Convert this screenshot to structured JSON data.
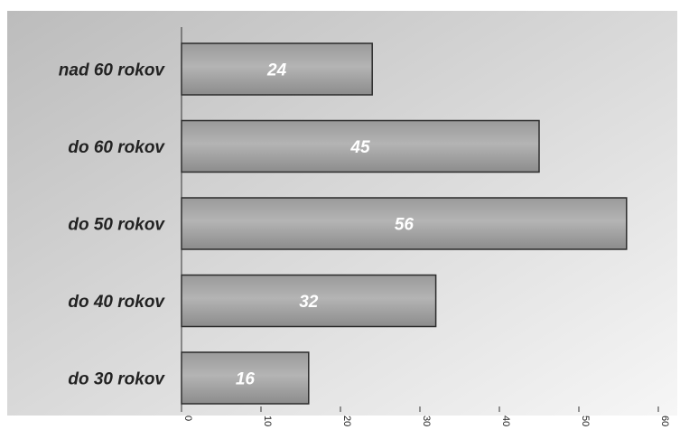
{
  "chart_data": {
    "type": "bar",
    "orientation": "horizontal",
    "categories": [
      "nad 60 rokov",
      "do 60 rokov",
      "do 50 rokov",
      "do 40 rokov",
      "do 30 rokov"
    ],
    "values": [
      24,
      45,
      56,
      32,
      16
    ],
    "data_labels": [
      "24",
      "45",
      "56",
      "32",
      "16"
    ],
    "xlim": [
      0,
      60
    ],
    "x_ticks": [
      0,
      10,
      20,
      30,
      40,
      50,
      60
    ],
    "x_tick_labels": [
      "0",
      "10",
      "20",
      "30",
      "40",
      "50",
      "60"
    ],
    "title": "",
    "xlabel": "",
    "ylabel": "",
    "grid": false,
    "legend": "none",
    "colors": {
      "bar_fill": "#a7a7a7",
      "bar_stroke": "#2b2b2b",
      "axis": "#333333",
      "background_top": "#bdbdbd",
      "background_bottom": "#f4f4f4"
    }
  }
}
